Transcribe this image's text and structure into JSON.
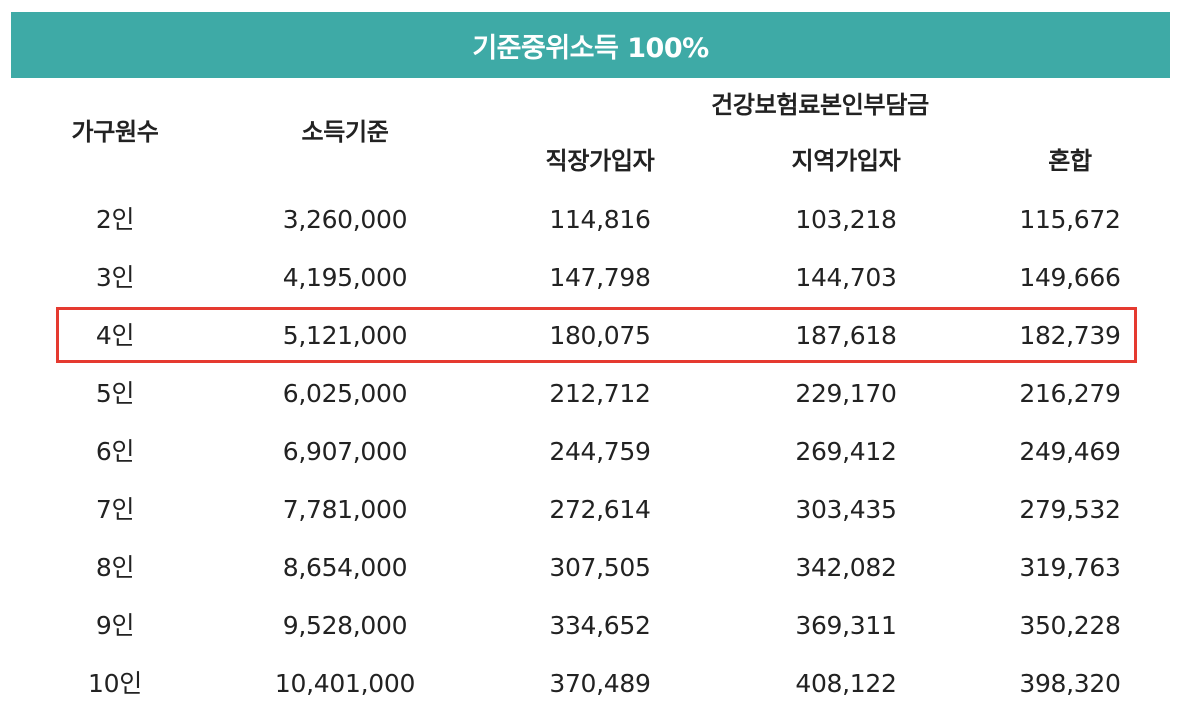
{
  "title": "기준중위소득 100%",
  "headers": {
    "household": "가구원수",
    "income": "소득기준",
    "premium_group": "건강보험료본인부담금",
    "employee": "직장가입자",
    "regional": "지역가입자",
    "mixed": "혼합"
  },
  "rows": [
    [
      "2인",
      "3,260,000",
      "114,816",
      "103,218",
      "115,672"
    ],
    [
      "3인",
      "4,195,000",
      "147,798",
      "144,703",
      "149,666"
    ],
    [
      "4인",
      "5,121,000",
      "180,075",
      "187,618",
      "182,739"
    ],
    [
      "5인",
      "6,025,000",
      "212,712",
      "229,170",
      "216,279"
    ],
    [
      "6인",
      "6,907,000",
      "244,759",
      "269,412",
      "249,469"
    ],
    [
      "7인",
      "7,781,000",
      "272,614",
      "303,435",
      "279,532"
    ],
    [
      "8인",
      "8,654,000",
      "307,505",
      "342,082",
      "319,763"
    ],
    [
      "9인",
      "9,528,000",
      "334,652",
      "369,311",
      "350,228"
    ],
    [
      "10인",
      "10,401,000",
      "370,489",
      "408,122",
      "398,320"
    ]
  ],
  "highlighted_row": "4인",
  "colors": {
    "banner": "#3eaaa6",
    "highlight_border": "#e53a30",
    "text": "#222222"
  }
}
